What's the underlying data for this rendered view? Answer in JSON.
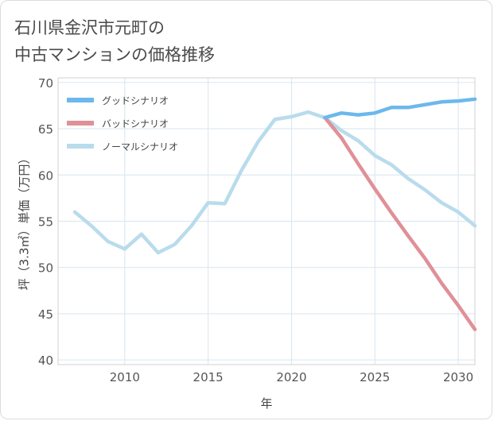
{
  "title_lines": [
    "石川県金沢市元町の",
    "中古マンションの価格推移"
  ],
  "chart_data": {
    "type": "line",
    "title": "石川県金沢市元町の中古マンションの価格推移",
    "xlabel": "年",
    "ylabel": "坪（3.3㎡）単価（万円）",
    "xlim": [
      2006,
      2031
    ],
    "ylim": [
      39.5,
      70.5
    ],
    "x_ticks": [
      2010,
      2015,
      2020,
      2025,
      2030
    ],
    "y_ticks": [
      40,
      45,
      50,
      55,
      60,
      65,
      70
    ],
    "grid": true,
    "legend_position": "top-left",
    "series": [
      {
        "name": "グッドシナリオ",
        "color": "#6cb8ec",
        "x": [
          2022,
          2023,
          2024,
          2025,
          2026,
          2027,
          2028,
          2029,
          2030,
          2031
        ],
        "y": [
          66.2,
          66.7,
          66.5,
          66.7,
          67.3,
          67.3,
          67.6,
          67.9,
          68.0,
          68.2
        ]
      },
      {
        "name": "バッドシナリオ",
        "color": "#e09097",
        "x": [
          2022,
          2023,
          2024,
          2025,
          2026,
          2027,
          2028,
          2029,
          2030,
          2031
        ],
        "y": [
          66.2,
          64.0,
          61.2,
          58.5,
          55.9,
          53.4,
          51.0,
          48.3,
          45.9,
          43.3
        ]
      },
      {
        "name": "ノーマルシナリオ",
        "color": "#b9dcec",
        "x": [
          2007,
          2008,
          2009,
          2010,
          2011,
          2012,
          2013,
          2014,
          2015,
          2016,
          2017,
          2018,
          2019,
          2020,
          2021,
          2022,
          2023,
          2024,
          2025,
          2026,
          2027,
          2028,
          2029,
          2030,
          2031
        ],
        "y": [
          56.0,
          54.5,
          52.8,
          52.0,
          53.6,
          51.6,
          52.5,
          54.5,
          57.0,
          56.9,
          60.5,
          63.6,
          66.0,
          66.3,
          66.8,
          66.2,
          64.8,
          63.7,
          62.1,
          61.1,
          59.6,
          58.4,
          57.0,
          56.0,
          54.5
        ]
      }
    ]
  }
}
